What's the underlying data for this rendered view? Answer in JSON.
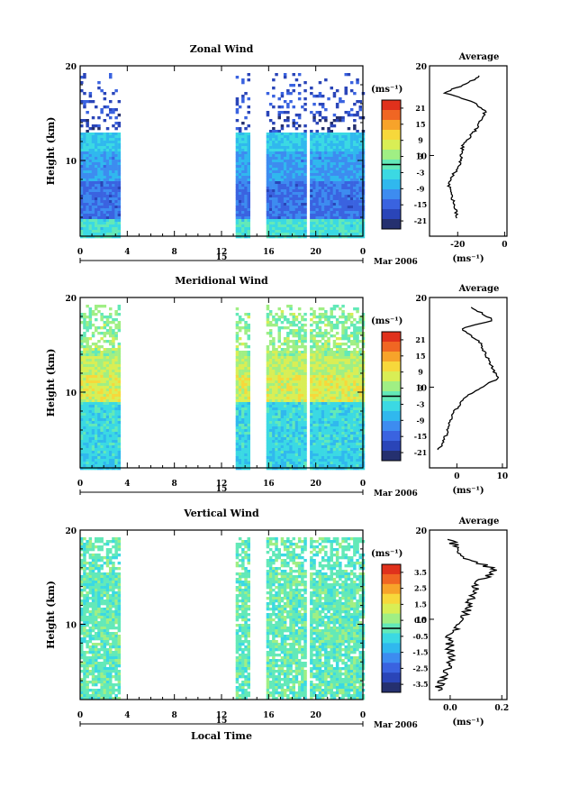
{
  "chart_data": [
    {
      "type": "heatmap",
      "title": "Zonal Wind",
      "ylabel": "Height (km)",
      "xlabel": "",
      "date_label": "15",
      "month_label": "Mar 2006",
      "ylim": [
        2,
        20
      ],
      "y_ticks": [
        "20",
        "10"
      ],
      "xlim": [
        0,
        24
      ],
      "x_ticks": [
        "0",
        "4",
        "8",
        "12",
        "16",
        "20",
        "0"
      ],
      "data_blocks_hours": [
        [
          0,
          3.3
        ],
        [
          13.2,
          14.2
        ],
        [
          15.8,
          19.2
        ],
        [
          19.5,
          24
        ]
      ],
      "colorbar": {
        "unit_label": "(ms⁻¹)",
        "ticks": [
          "21",
          "15",
          "9",
          "3",
          "-3",
          "-9",
          "-15",
          "-21"
        ],
        "range": [
          -24,
          24
        ]
      },
      "profile_mean_ms": [
        {
          "h": 3,
          "v": -20
        },
        {
          "h": 5,
          "v": -22
        },
        {
          "h": 7,
          "v": -24
        },
        {
          "h": 9,
          "v": -19
        },
        {
          "h": 11,
          "v": -18
        },
        {
          "h": 13,
          "v": -12
        },
        {
          "h": 15,
          "v": -8
        },
        {
          "h": 16,
          "v": -14
        },
        {
          "h": 17,
          "v": -26
        },
        {
          "h": 18,
          "v": -16
        },
        {
          "h": 19,
          "v": -10
        }
      ],
      "average": {
        "title": "Average",
        "unit": "(ms⁻¹)",
        "x_ticks": [
          "-20",
          "0"
        ],
        "y_ticks": [
          "20",
          "10"
        ],
        "xlim": [
          -32,
          1
        ],
        "ylim": [
          1,
          20
        ]
      }
    },
    {
      "type": "heatmap",
      "title": "Meridional Wind",
      "ylabel": "Height (km)",
      "xlabel": "",
      "date_label": "15",
      "month_label": "Mar 2006",
      "ylim": [
        2,
        20
      ],
      "y_ticks": [
        "20",
        "10"
      ],
      "xlim": [
        0,
        24
      ],
      "x_ticks": [
        "0",
        "4",
        "8",
        "12",
        "16",
        "20",
        "0"
      ],
      "data_blocks_hours": [
        [
          0,
          3.3
        ],
        [
          13.2,
          14.2
        ],
        [
          15.8,
          19.2
        ],
        [
          19.5,
          24
        ]
      ],
      "colorbar": {
        "unit_label": "(ms⁻¹)",
        "ticks": [
          "21",
          "15",
          "9",
          "3",
          "-3",
          "-9",
          "-15",
          "-21"
        ],
        "range": [
          -24,
          24
        ]
      },
      "profile_mean_ms": [
        {
          "h": 3,
          "v": -4
        },
        {
          "h": 5,
          "v": -2
        },
        {
          "h": 7,
          "v": -1
        },
        {
          "h": 9,
          "v": 2
        },
        {
          "h": 11,
          "v": 9
        },
        {
          "h": 13,
          "v": 7
        },
        {
          "h": 15,
          "v": 5
        },
        {
          "h": 16.5,
          "v": 1
        },
        {
          "h": 17.5,
          "v": 8
        },
        {
          "h": 19,
          "v": 3
        }
      ],
      "average": {
        "title": "Average",
        "unit": "(ms⁻¹)",
        "x_ticks": [
          "0",
          "10"
        ],
        "y_ticks": [
          "20",
          "10"
        ],
        "xlim": [
          -6,
          11
        ],
        "ylim": [
          1,
          20
        ]
      }
    },
    {
      "type": "heatmap",
      "title": "Vertical Wind",
      "ylabel": "Height (km)",
      "xlabel": "Local Time",
      "date_label": "15",
      "month_label": "Mar 2006",
      "ylim": [
        2,
        20
      ],
      "y_ticks": [
        "20",
        "10"
      ],
      "xlim": [
        0,
        24
      ],
      "x_ticks": [
        "0",
        "4",
        "8",
        "12",
        "16",
        "20",
        "0"
      ],
      "data_blocks_hours": [
        [
          0,
          3.3
        ],
        [
          13.2,
          14.2
        ],
        [
          15.8,
          19.2
        ],
        [
          19.5,
          24
        ]
      ],
      "colorbar": {
        "unit_label": "(ms⁻¹)",
        "ticks": [
          "3.5",
          "2.5",
          "1.5",
          "0.5",
          "-0.5",
          "-1.5",
          "-2.5",
          "-3.5"
        ],
        "range": [
          -4,
          4
        ]
      },
      "profile_mean_ms": [
        {
          "h": 2,
          "v": -0.05
        },
        {
          "h": 5,
          "v": 0.0
        },
        {
          "h": 8,
          "v": 0.0
        },
        {
          "h": 10,
          "v": 0.05
        },
        {
          "h": 12,
          "v": 0.08
        },
        {
          "h": 14,
          "v": 0.1
        },
        {
          "h": 15.5,
          "v": 0.18
        },
        {
          "h": 17,
          "v": 0.05
        },
        {
          "h": 19,
          "v": 0.0
        }
      ],
      "average": {
        "title": "Average",
        "unit": "(ms⁻¹)",
        "x_ticks": [
          "0.0",
          "0.2"
        ],
        "y_ticks": [
          "20",
          "10"
        ],
        "xlim": [
          -0.08,
          0.22
        ],
        "ylim": [
          1,
          20
        ]
      }
    }
  ]
}
